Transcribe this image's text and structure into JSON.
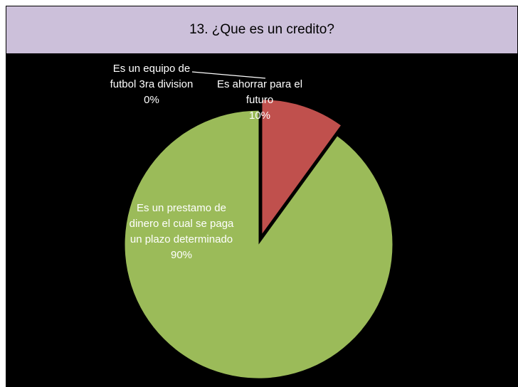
{
  "chart_data": {
    "type": "pie",
    "title": "13. ¿Que es un credito?",
    "categories": [
      "Es un equipo de futbol 3ra division",
      "Es ahorrar para el futuro",
      "Es un prestamo de dinero el cual se paga un plazo determinado"
    ],
    "values": [
      0,
      10,
      90
    ],
    "value_labels": [
      "0%",
      "10%",
      "90%"
    ],
    "colors": [
      "#4f81bd",
      "#c0504d",
      "#9bbb59"
    ]
  }
}
